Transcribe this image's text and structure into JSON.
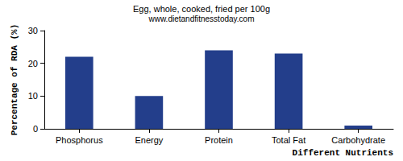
{
  "chart_data": {
    "type": "bar",
    "title": "Egg, whole, cooked, fried per 100g",
    "subtitle": "www.dietandfitnesstoday.com",
    "xlabel": "Different Nutrients",
    "ylabel": "Percentage of RDA (%)",
    "categories": [
      "Phosphorus",
      "Energy",
      "Protein",
      "Total Fat",
      "Carbohydrate"
    ],
    "values": [
      22,
      10,
      24,
      23,
      1
    ],
    "color": "#233e8b",
    "ylim": [
      0,
      30
    ],
    "yticks": [
      0,
      10,
      20,
      30
    ],
    "grid": false
  }
}
